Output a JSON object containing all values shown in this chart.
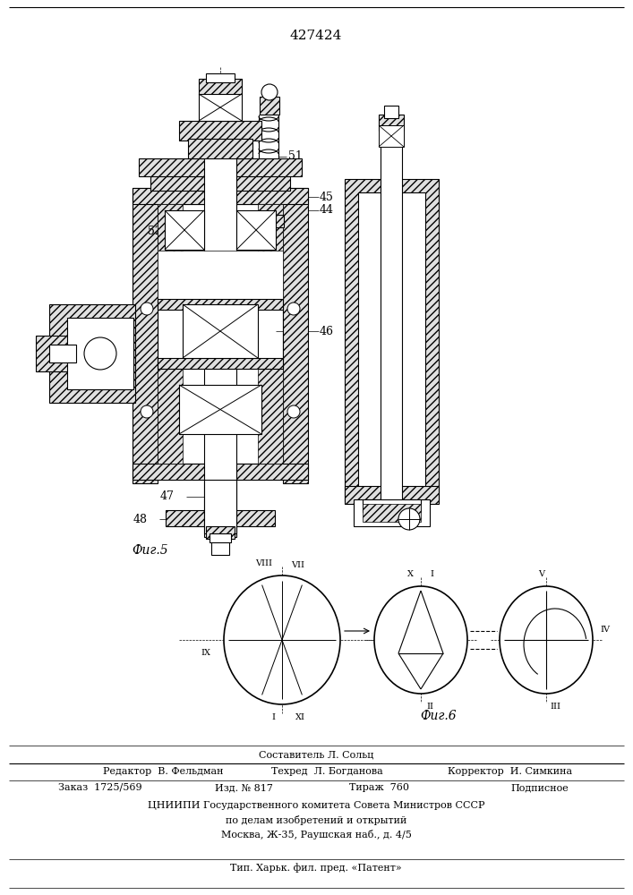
{
  "patent_number": "427424",
  "fig5_label": "Фиг.5",
  "fig6_label": "Фиг.6",
  "sostavitel": "Составитель Л. Сольц",
  "redaktor": "Редактор  В. Фельдман",
  "tekhred": "Техред  Л. Богданова",
  "korrektor": "Корректор  И. Симкина",
  "zakaz": "Заказ  1725/569",
  "izd": "Изд. № 817",
  "tirazh": "Тираж  760",
  "podpisnoe": "Подписное",
  "tsniipи_line1": "ЦНИИПИ Государственного комитета Совета Министров СССР",
  "tsniipи_line2": "по делам изобретений и открытий",
  "tsniipи_line3": "Москва, Ж-35, Раушская наб., д. 4/5",
  "tip": "Тип. Харьк. фил. пред. «Патент»",
  "bg_color": "#ffffff"
}
